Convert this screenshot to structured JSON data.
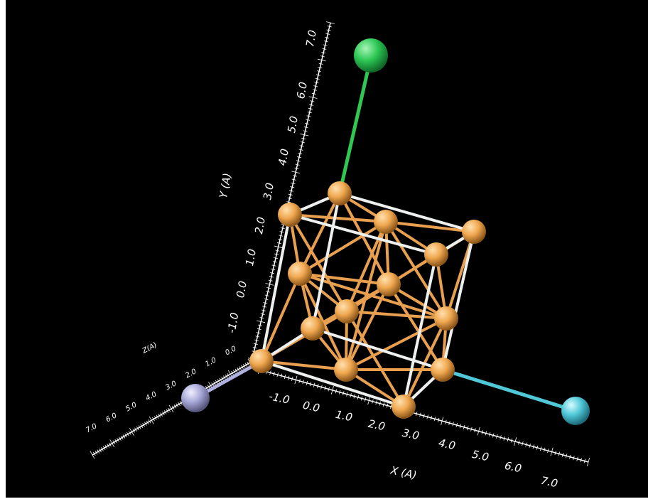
{
  "axes": {
    "x": {
      "label": "X (A)",
      "ticks": [
        "-1.0",
        "0.0",
        "1.0",
        "2.0",
        "3.0",
        "4.0",
        "5.0",
        "6.0",
        "7.0"
      ]
    },
    "y": {
      "label": "Y (A)",
      "ticks": [
        "-1.0",
        "0.0",
        "1.0",
        "2.0",
        "3.0",
        "4.0",
        "5.0",
        "6.0",
        "7.0"
      ]
    },
    "z": {
      "label": "Z(A)",
      "ticks": [
        "7.0",
        "6.0",
        "5.0",
        "4.0",
        "3.0",
        "2.0",
        "1.0",
        "0.0"
      ]
    }
  }
}
